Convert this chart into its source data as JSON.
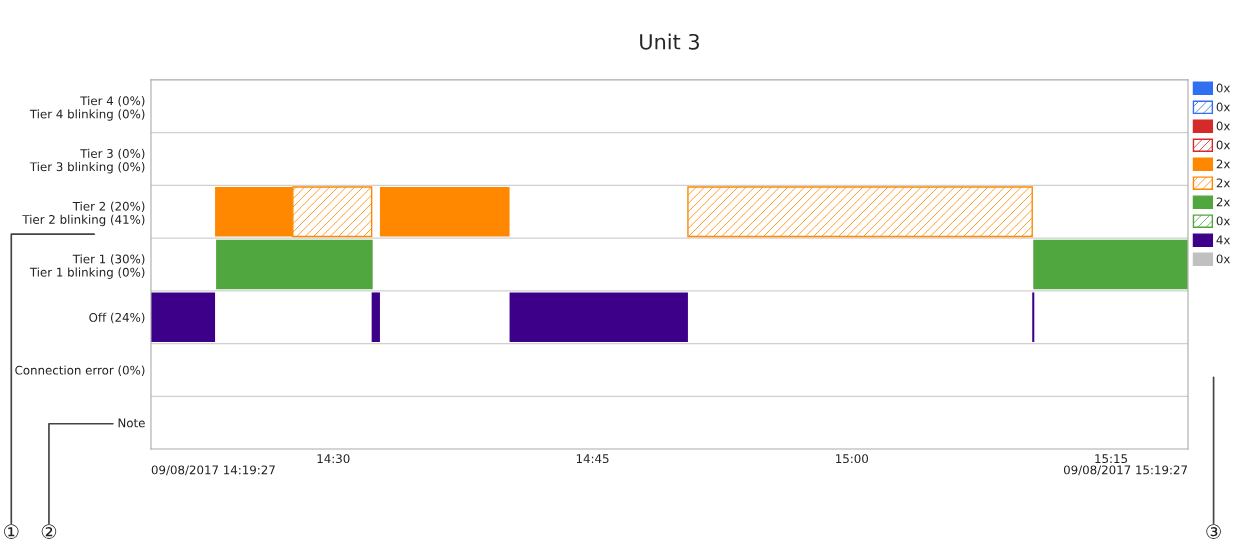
{
  "chart_data": {
    "type": "bar",
    "orientation": "horizontal",
    "title": "Unit 3",
    "categories": [
      "Tier 4 (0%)\nTier 4 blinking (0%)",
      "Tier 3 (0%)\nTier 3 blinking (0%)",
      "Tier 2 (20%)\nTier 2 blinking (41%)",
      "Tier 1 (30%)\nTier 1 blinking (0%)",
      "Off (24%)",
      "Connection error (0%)",
      "Note"
    ],
    "xlim": [
      14.3242,
      15.3242
    ],
    "xticks": [
      {
        "value": 14.5,
        "label": "14:30"
      },
      {
        "value": 14.75,
        "label": "14:45"
      },
      {
        "value": 15.0,
        "label": "15:00"
      },
      {
        "value": 15.25,
        "label": "15:15"
      }
    ],
    "grid": "y",
    "legend": "right",
    "series": [
      {
        "name": "0x",
        "color": "#2f6ff0",
        "values": [
          null,
          null,
          null,
          null,
          null,
          null,
          null
        ]
      },
      {
        "name": "0x",
        "color": "#2f6ff0",
        "line_style": "solid",
        "values": [
          null,
          null,
          null,
          null,
          null,
          null,
          null
        ]
      },
      {
        "name": "0x",
        "color": "#d62a2a",
        "values": [
          null,
          null,
          null,
          null,
          null,
          null,
          null
        ]
      },
      {
        "name": "0x",
        "color": "#d62a2a",
        "line_style": "solid",
        "values": [
          null,
          null,
          null,
          null,
          null,
          null,
          null
        ]
      },
      {
        "name": "2x",
        "color": "#ff8800",
        "values": [
          null,
          null,
          0.075,
          null,
          null,
          null,
          null
        ],
        "base": [
          null,
          null,
          14.386,
          null,
          null,
          null,
          null
        ]
      },
      {
        "color": "#ff8800",
        "values": [
          null,
          null,
          0.125,
          null,
          null,
          null,
          null
        ],
        "base": [
          null,
          null,
          14.545,
          null,
          null,
          null,
          null
        ]
      },
      {
        "name": "2x",
        "color": "#ff8800",
        "line_style": "solid",
        "values": [
          null,
          null,
          0.076,
          null,
          null,
          null,
          null
        ],
        "base": [
          null,
          null,
          14.461,
          null,
          null,
          null,
          null
        ]
      },
      {
        "color": "#ff8800",
        "line_style": "solid",
        "values": [
          null,
          null,
          0.332,
          null,
          null,
          null,
          null
        ],
        "base": [
          null,
          null,
          14.842,
          null,
          null,
          null,
          null
        ]
      },
      {
        "name": "2x",
        "color": "#50a63f",
        "values": [
          null,
          null,
          null,
          0.151,
          null,
          null,
          null
        ],
        "base": [
          null,
          null,
          null,
          14.387,
          null,
          null,
          null
        ]
      },
      {
        "color": "#50a63f",
        "values": [
          null,
          null,
          null,
          0.149,
          null,
          null,
          null
        ],
        "base": [
          null,
          null,
          null,
          15.175,
          null,
          null,
          null
        ]
      },
      {
        "name": "0x",
        "color": "#50a63f",
        "line_style": "solid",
        "values": [
          null,
          null,
          null,
          null,
          null,
          null,
          null
        ]
      },
      {
        "name": "4x",
        "color": "#3d0088",
        "values": [
          null,
          null,
          null,
          null,
          0.062,
          null,
          null
        ],
        "base": [
          null,
          null,
          null,
          null,
          14.324,
          null,
          null
        ]
      },
      {
        "color": "#3d0088",
        "values": [
          null,
          null,
          null,
          null,
          0.008,
          null,
          null
        ],
        "base": [
          null,
          null,
          null,
          null,
          14.537,
          null,
          null
        ]
      },
      {
        "color": "#3d0088",
        "values": [
          null,
          null,
          null,
          null,
          0.172,
          null,
          null
        ],
        "base": [
          null,
          null,
          null,
          null,
          14.67,
          null,
          null
        ]
      },
      {
        "color": "#3d0088",
        "values": [
          null,
          null,
          null,
          null,
          0.002,
          null,
          null
        ],
        "base": [
          null,
          null,
          null,
          null,
          15.174,
          null,
          null
        ]
      },
      {
        "name": "0x",
        "color": "#c0c0c0",
        "values": [
          null,
          null,
          null,
          null,
          null,
          null,
          null
        ]
      }
    ],
    "annotations": [
      "09/08/2017 14:19:27",
      "09/08/2017 15:19:27",
      "①",
      "②",
      "③"
    ]
  }
}
